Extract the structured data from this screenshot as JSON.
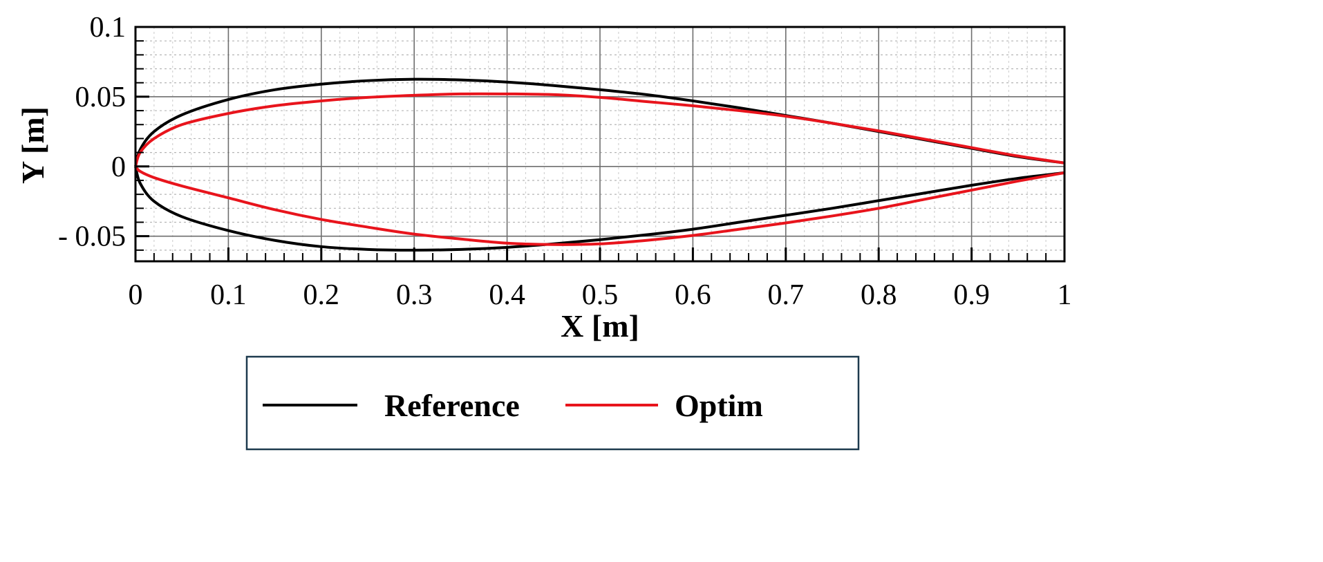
{
  "chart_data": {
    "type": "line",
    "xlabel": "X [m]",
    "ylabel": "Y [m]",
    "xlim": [
      0,
      1
    ],
    "ylim": [
      -0.068,
      0.1
    ],
    "grid": true,
    "minor_grid": true,
    "legend_position": "bottom",
    "x_ticks": [
      {
        "value": 0,
        "label": "0"
      },
      {
        "value": 0.1,
        "label": "0.1"
      },
      {
        "value": 0.2,
        "label": "0.2"
      },
      {
        "value": 0.3,
        "label": "0.3"
      },
      {
        "value": 0.4,
        "label": "0.4"
      },
      {
        "value": 0.5,
        "label": "0.5"
      },
      {
        "value": 0.6,
        "label": "0.6"
      },
      {
        "value": 0.7,
        "label": "0.7"
      },
      {
        "value": 0.8,
        "label": "0.8"
      },
      {
        "value": 0.9,
        "label": "0.9"
      },
      {
        "value": 1,
        "label": "1"
      }
    ],
    "y_ticks": [
      {
        "value": 0.1,
        "label": "0.1"
      },
      {
        "value": 0.05,
        "label": "0.05"
      },
      {
        "value": 0,
        "label": "0"
      },
      {
        "value": -0.05,
        "label": "- 0.05"
      }
    ],
    "series": [
      {
        "name": "Reference",
        "color": "#000000",
        "upper": {
          "x": [
            0,
            0.005,
            0.02,
            0.05,
            0.1,
            0.15,
            0.2,
            0.25,
            0.3,
            0.35,
            0.4,
            0.45,
            0.5,
            0.55,
            0.6,
            0.65,
            0.7,
            0.75,
            0.8,
            0.85,
            0.9,
            0.95,
            1.0
          ],
          "y": [
            0,
            0.012,
            0.025,
            0.037,
            0.048,
            0.055,
            0.059,
            0.0615,
            0.0625,
            0.062,
            0.0605,
            0.058,
            0.055,
            0.0515,
            0.047,
            0.042,
            0.0365,
            0.031,
            0.025,
            0.019,
            0.013,
            0.007,
            0.0025
          ]
        },
        "lower": {
          "x": [
            0,
            0.005,
            0.02,
            0.05,
            0.1,
            0.15,
            0.2,
            0.25,
            0.3,
            0.35,
            0.4,
            0.45,
            0.5,
            0.55,
            0.6,
            0.65,
            0.7,
            0.75,
            0.8,
            0.85,
            0.9,
            0.95,
            1.0
          ],
          "y": [
            0,
            -0.012,
            -0.025,
            -0.036,
            -0.046,
            -0.053,
            -0.0575,
            -0.0595,
            -0.06,
            -0.0595,
            -0.058,
            -0.0555,
            -0.0525,
            -0.049,
            -0.045,
            -0.04,
            -0.035,
            -0.03,
            -0.0245,
            -0.019,
            -0.0135,
            -0.0085,
            -0.0045
          ]
        }
      },
      {
        "name": "Optim",
        "color": "#e8141c",
        "upper": {
          "x": [
            0,
            0.005,
            0.02,
            0.05,
            0.1,
            0.15,
            0.2,
            0.25,
            0.3,
            0.35,
            0.4,
            0.45,
            0.5,
            0.55,
            0.6,
            0.65,
            0.7,
            0.75,
            0.8,
            0.85,
            0.9,
            0.95,
            1.0
          ],
          "y": [
            0,
            0.01,
            0.02,
            0.03,
            0.038,
            0.0435,
            0.047,
            0.0495,
            0.051,
            0.052,
            0.052,
            0.0515,
            0.0495,
            0.0465,
            0.0435,
            0.04,
            0.036,
            0.031,
            0.0255,
            0.0195,
            0.0135,
            0.0075,
            0.0025
          ]
        },
        "lower": {
          "x": [
            0,
            0.005,
            0.02,
            0.05,
            0.1,
            0.15,
            0.2,
            0.25,
            0.3,
            0.35,
            0.4,
            0.45,
            0.5,
            0.55,
            0.6,
            0.65,
            0.7,
            0.75,
            0.8,
            0.85,
            0.9,
            0.95,
            1.0
          ],
          "y": [
            0,
            -0.0035,
            -0.008,
            -0.014,
            -0.0225,
            -0.031,
            -0.038,
            -0.0435,
            -0.0485,
            -0.052,
            -0.055,
            -0.056,
            -0.0555,
            -0.053,
            -0.0495,
            -0.045,
            -0.0405,
            -0.0355,
            -0.03,
            -0.0235,
            -0.017,
            -0.0105,
            -0.0045
          ]
        }
      }
    ]
  }
}
